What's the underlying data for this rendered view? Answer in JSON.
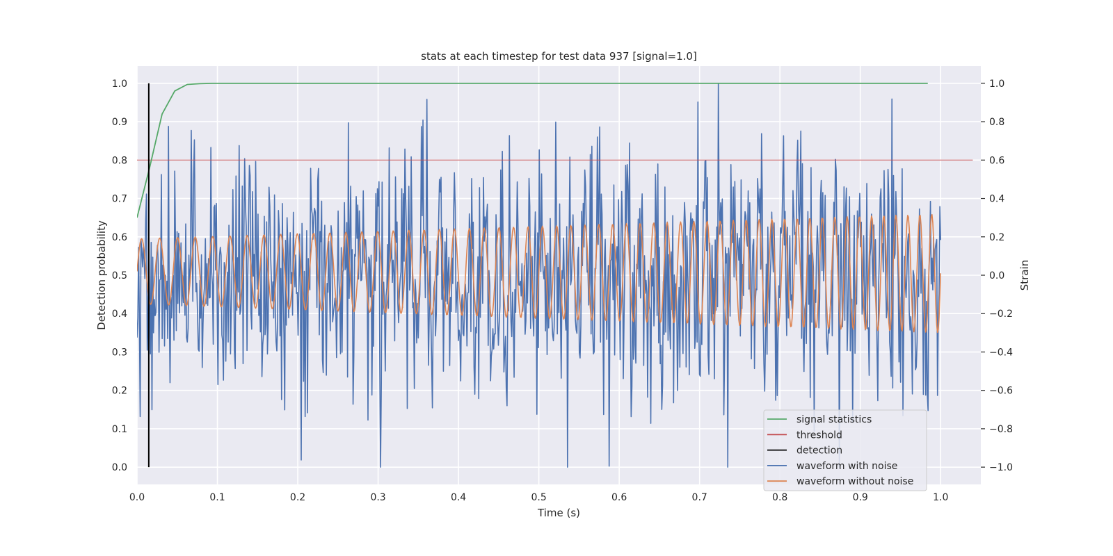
{
  "chart_data": {
    "type": "line",
    "title": "stats at each timestep for test data 937 [signal=1.0]",
    "xlabel": "Time (s)",
    "ylabel_left": "Detection probability",
    "ylabel_right": "Strain",
    "xlim": [
      0.0,
      1.05
    ],
    "ylim_left": [
      -0.045,
      1.045
    ],
    "ylim_right": [
      -1.09,
      1.09
    ],
    "x_ticks": [
      0.0,
      0.1,
      0.2,
      0.3,
      0.4,
      0.5,
      0.6,
      0.7,
      0.8,
      0.9,
      1.0
    ],
    "x_tick_labels": [
      "0.0",
      "0.1",
      "0.2",
      "0.3",
      "0.4",
      "0.5",
      "0.6",
      "0.7",
      "0.8",
      "0.9",
      "1.0"
    ],
    "y_left_ticks": [
      0.0,
      0.1,
      0.2,
      0.3,
      0.4,
      0.5,
      0.6,
      0.7,
      0.8,
      0.9,
      1.0
    ],
    "y_left_tick_labels": [
      "0.0",
      "0.1",
      "0.2",
      "0.3",
      "0.4",
      "0.5",
      "0.6",
      "0.7",
      "0.8",
      "0.9",
      "1.0"
    ],
    "y_right_ticks": [
      -1.0,
      -0.8,
      -0.6,
      -0.4,
      -0.2,
      0.0,
      0.2,
      0.4,
      0.6,
      0.8,
      1.0
    ],
    "y_right_tick_labels": [
      "−1.0",
      "−0.8",
      "−0.6",
      "−0.4",
      "−0.2",
      "0.0",
      "0.2",
      "0.4",
      "0.6",
      "0.8",
      "1.0"
    ],
    "grid": true,
    "background": "#eaeaf2",
    "legend_placement": "lower-right",
    "series": [
      {
        "name": "signal statistics",
        "axis": "left",
        "color": "#55a868",
        "x": [
          0.0,
          0.0156,
          0.0312,
          0.0469,
          0.0625,
          0.0781,
          0.0938,
          0.2,
          0.4,
          0.6,
          0.8,
          0.984
        ],
        "y": [
          0.65,
          0.78,
          0.92,
          0.98,
          0.997,
          0.999,
          1.0,
          1.0,
          1.0,
          1.0,
          1.0,
          1.0
        ]
      },
      {
        "name": "threshold",
        "axis": "left",
        "color": "#c44e52",
        "x": [
          0.0,
          1.04
        ],
        "y": [
          0.8,
          0.8
        ]
      },
      {
        "name": "detection",
        "axis": "left",
        "color": "#000000",
        "x": [
          0.0146,
          0.0146
        ],
        "y": [
          0.0,
          1.0
        ]
      },
      {
        "name": "waveform with noise",
        "axis": "right",
        "color": "#4c72b0",
        "x_range": [
          0.0,
          1.0
        ],
        "samples": 1024,
        "noise_sigma": 0.3,
        "y_range": [
          -1.0,
          1.0
        ]
      },
      {
        "name": "waveform without noise",
        "axis": "right",
        "color": "#dd8452",
        "x_range": [
          0.0,
          1.0
        ],
        "samples": 1024,
        "y_range": [
          -0.35,
          0.32
        ],
        "cycles": 44
      }
    ]
  }
}
